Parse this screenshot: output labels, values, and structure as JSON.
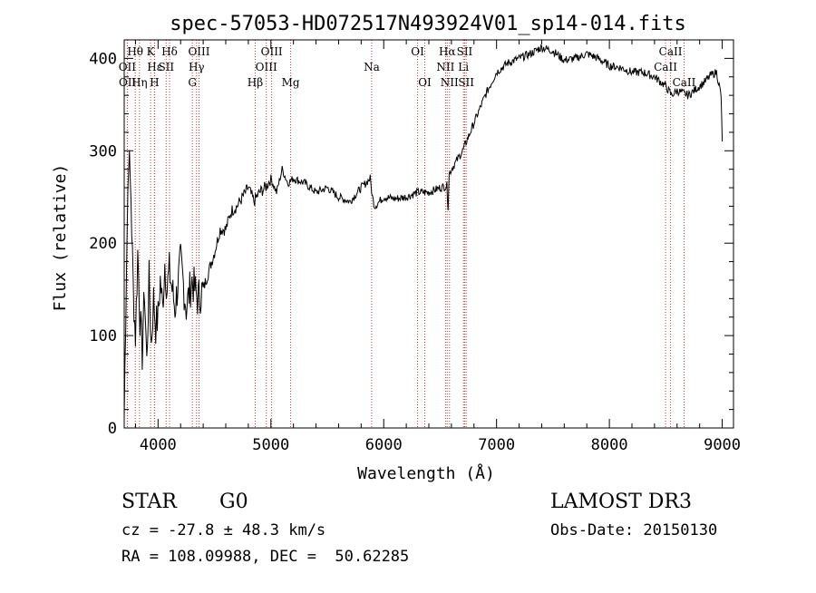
{
  "chart_data": {
    "type": "line",
    "title": "spec-57053-HD072517N493924V01_sp14-014.fits",
    "xlabel": "Wavelength (Å)",
    "ylabel": "Flux (relative)",
    "xlim": [
      3700,
      9100
    ],
    "ylim": [
      0,
      420
    ],
    "xticks": [
      4000,
      5000,
      6000,
      7000,
      8000,
      9000
    ],
    "yticks": [
      0,
      100,
      200,
      300,
      400
    ],
    "series": [
      {
        "name": "flux",
        "x": [
          3700,
          3720,
          3740,
          3760,
          3780,
          3800,
          3820,
          3840,
          3860,
          3880,
          3900,
          3920,
          3940,
          3960,
          3980,
          4000,
          4020,
          4040,
          4060,
          4080,
          4100,
          4150,
          4200,
          4250,
          4300,
          4350,
          4400,
          4450,
          4500,
          4550,
          4600,
          4650,
          4700,
          4750,
          4800,
          4850,
          4900,
          4950,
          5000,
          5050,
          5100,
          5150,
          5200,
          5300,
          5400,
          5500,
          5600,
          5700,
          5800,
          5880,
          5900,
          5920,
          6000,
          6100,
          6200,
          6300,
          6400,
          6500,
          6560,
          6570,
          6580,
          6600,
          6700,
          6800,
          6900,
          7000,
          7100,
          7200,
          7300,
          7400,
          7500,
          7600,
          7700,
          7800,
          7900,
          8000,
          8100,
          8200,
          8300,
          8400,
          8500,
          8550,
          8600,
          8700,
          8800,
          8850,
          8900,
          8950,
          8990,
          9000
        ],
        "y": [
          10,
          180,
          300,
          250,
          150,
          100,
          190,
          120,
          80,
          150,
          70,
          160,
          90,
          140,
          110,
          120,
          160,
          130,
          180,
          150,
          170,
          130,
          180,
          130,
          160,
          140,
          150,
          170,
          190,
          215,
          215,
          235,
          240,
          250,
          260,
          245,
          255,
          260,
          270,
          255,
          280,
          265,
          270,
          265,
          255,
          260,
          250,
          245,
          260,
          270,
          250,
          240,
          250,
          248,
          250,
          255,
          255,
          260,
          262,
          240,
          275,
          280,
          300,
          330,
          360,
          385,
          395,
          400,
          405,
          412,
          408,
          398,
          400,
          405,
          400,
          392,
          390,
          385,
          385,
          380,
          370,
          360,
          365,
          360,
          370,
          375,
          382,
          385,
          360,
          310
        ]
      }
    ],
    "spectral_lines": [
      {
        "label": "Hθ",
        "wavelength": 3798,
        "row": 1
      },
      {
        "label": "OII",
        "wavelength": 3727,
        "row": 2
      },
      {
        "label": "OII",
        "wavelength": 3729,
        "row": 3
      },
      {
        "label": "Hε",
        "wavelength": 3970,
        "row": 2
      },
      {
        "label": "Hη",
        "wavelength": 3835,
        "row": 3
      },
      {
        "label": "K",
        "wavelength": 3934,
        "row": 1
      },
      {
        "label": "H",
        "wavelength": 3968,
        "row": 3
      },
      {
        "label": "SII",
        "wavelength": 4072,
        "row": 2
      },
      {
        "label": "Hδ",
        "wavelength": 4102,
        "row": 1
      },
      {
        "label": "OIII",
        "wavelength": 4363,
        "row": 1
      },
      {
        "label": "Hγ",
        "wavelength": 4341,
        "row": 2
      },
      {
        "label": "G",
        "wavelength": 4304,
        "row": 3
      },
      {
        "label": "Hβ",
        "wavelength": 4861,
        "row": 3
      },
      {
        "label": "OIII",
        "wavelength": 5007,
        "row": 1
      },
      {
        "label": "OIII",
        "wavelength": 4959,
        "row": 2
      },
      {
        "label": "Mg",
        "wavelength": 5175,
        "row": 3
      },
      {
        "label": "Na",
        "wavelength": 5893,
        "row": 2
      },
      {
        "label": "OI",
        "wavelength": 6300,
        "row": 1
      },
      {
        "label": "OI",
        "wavelength": 6364,
        "row": 3
      },
      {
        "label": "Hα",
        "wavelength": 6563,
        "row": 1
      },
      {
        "label": "NII",
        "wavelength": 6548,
        "row": 2
      },
      {
        "label": "NII",
        "wavelength": 6583,
        "row": 3
      },
      {
        "label": "SII",
        "wavelength": 6717,
        "row": 1
      },
      {
        "label": "Li",
        "wavelength": 6707,
        "row": 2
      },
      {
        "label": "SII",
        "wavelength": 6731,
        "row": 3
      },
      {
        "label": "CaII",
        "wavelength": 8542,
        "row": 1
      },
      {
        "label": "CaII",
        "wavelength": 8498,
        "row": 2
      },
      {
        "label": "CaII",
        "wavelength": 8662,
        "row": 3
      }
    ]
  },
  "info": {
    "class": "STAR",
    "subclass": "G0",
    "survey": "LAMOST DR3",
    "cz": "cz = -27.8 ± 48.3 km/s",
    "obs_date": "Obs-Date: 20150130",
    "coords": "RA = 108.09988, DEC =  50.62285"
  },
  "colors": {
    "line_marker": "#cc3333",
    "spectrum": "#000000"
  }
}
